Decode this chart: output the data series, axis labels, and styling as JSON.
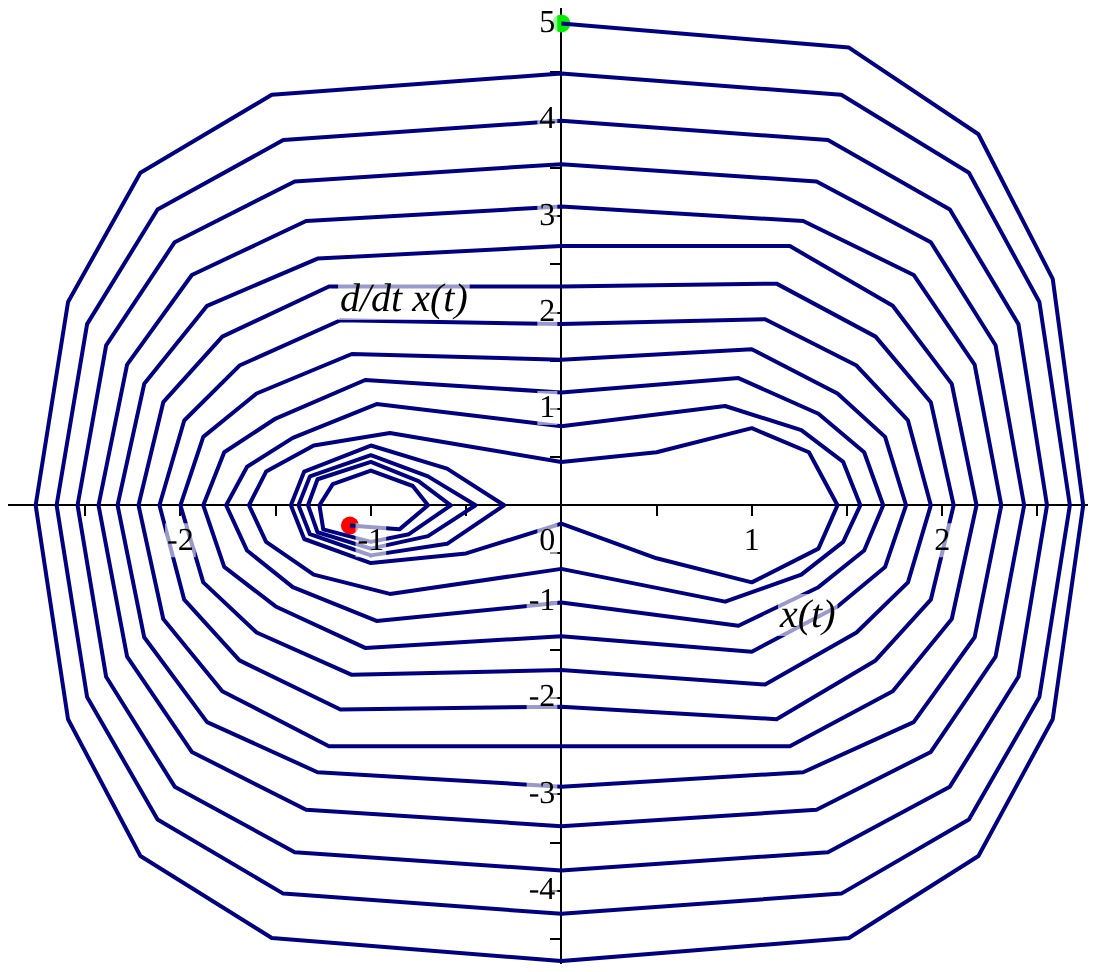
{
  "chart_data": {
    "type": "line",
    "xlabel": "x(t)",
    "ylabel": "d/dt x(t)",
    "grid": false,
    "legend": false,
    "xlim": [
      -2.9,
      2.76
    ],
    "ylim": [
      -4.75,
      5.15
    ],
    "xticks": [
      {
        "value": -2.5,
        "label": null
      },
      -2,
      {
        "value": -1.5,
        "label": null
      },
      -1,
      {
        "value": -0.5,
        "label": null
      },
      0,
      {
        "value": 0.5,
        "label": null
      },
      1,
      {
        "value": 1.5,
        "label": null
      },
      2,
      {
        "value": 2.5,
        "label": null
      }
    ],
    "yticks": [
      {
        "value": -4.5,
        "label": null
      },
      -4,
      {
        "value": -3.5,
        "label": null
      },
      -3,
      {
        "value": -2.5,
        "label": null
      },
      -2,
      {
        "value": -1.5,
        "label": null
      },
      -1,
      {
        "value": -0.5,
        "label": null
      },
      {
        "value": 0,
        "label": null
      },
      {
        "value": 0.5,
        "label": null
      },
      1,
      {
        "value": 1.5,
        "label": null
      },
      2,
      {
        "value": 2.5,
        "label": null
      },
      3,
      {
        "value": 3.5,
        "label": null
      },
      4,
      {
        "value": 4.5,
        "label": null
      },
      5
    ],
    "series": [
      {
        "type": "line",
        "color": "#000080",
        "x": [
          0,
          1.51,
          2.19,
          2.58,
          2.74,
          2.58,
          2.19,
          1.51,
          0,
          -1.52,
          -2.21,
          -2.59,
          -2.76,
          -2.59,
          -2.21,
          -1.52,
          0,
          1.47,
          2.14,
          2.51,
          2.67,
          2.51,
          2.14,
          1.47,
          0,
          -1.46,
          -2.12,
          -2.49,
          -2.65,
          -2.49,
          -2.12,
          -1.46,
          0,
          1.4,
          2.04,
          2.4,
          2.55,
          2.4,
          2.04,
          1.4,
          0,
          -1.4,
          -2.03,
          -2.39,
          -2.54,
          -2.39,
          -2.03,
          -1.4,
          0,
          1.34,
          1.94,
          2.28,
          2.43,
          2.28,
          1.94,
          1.34,
          0,
          -1.34,
          -1.94,
          -2.28,
          -2.43,
          -2.28,
          -1.94,
          -1.34,
          0,
          1.27,
          1.85,
          2.17,
          2.31,
          2.17,
          1.85,
          1.27,
          0,
          -1.28,
          -1.86,
          -2.19,
          -2.33,
          -2.19,
          -1.86,
          -1.28,
          0,
          1.2,
          1.74,
          2.05,
          2.18,
          2.05,
          1.74,
          1.2,
          0,
          -1.22,
          -1.78,
          -2.09,
          -2.22,
          -2.09,
          -1.78,
          -1.22,
          0,
          1.13,
          1.65,
          1.94,
          2.06,
          1.94,
          1.65,
          1.13,
          0,
          -1.16,
          -1.69,
          -1.98,
          -2.11,
          -1.98,
          -1.69,
          -1.16,
          0,
          1.07,
          1.55,
          1.82,
          1.94,
          1.82,
          1.55,
          1.07,
          0,
          -1.1,
          -1.6,
          -1.88,
          -2.0,
          -1.88,
          -1.6,
          -1.1,
          0,
          1.0,
          1.45,
          1.7,
          1.81,
          1.7,
          1.45,
          1.0,
          0,
          -1.03,
          -1.5,
          -1.77,
          -1.88,
          -1.77,
          -1.5,
          -1.03,
          0,
          0.93,
          1.35,
          1.59,
          1.69,
          1.59,
          1.35,
          0.93,
          0,
          -0.97,
          -1.41,
          -1.65,
          -1.76,
          -1.65,
          -1.41,
          -0.97,
          0,
          0.86,
          1.26,
          1.48,
          1.57,
          1.48,
          1.26,
          0.86,
          0,
          -0.9,
          -1.3,
          -1.55,
          -1.64,
          -1.55,
          -1.3,
          -0.9,
          -0.45,
          0,
          0.5,
          1.0,
          1.3,
          1.45,
          1.35,
          1.0,
          0.5,
          0,
          -0.5,
          -1.0,
          -1.35,
          -1.42,
          -1.35,
          -1.0,
          -0.6,
          -0.3,
          -0.6,
          -1.0,
          -1.32,
          -1.38,
          -1.32,
          -1.0,
          -0.7,
          -0.45,
          -0.7,
          -1.0,
          -1.28,
          -1.33,
          -1.28,
          -1.0,
          -0.75,
          -0.58,
          -0.8,
          -1.0,
          -1.25,
          -1.27,
          -1.2,
          -1.0,
          -0.78,
          -0.7,
          -0.85,
          -1.11
        ],
        "values": [
          5,
          4.75,
          3.85,
          2.35,
          0,
          -2.22,
          -3.64,
          -4.49,
          -4.73,
          -4.49,
          -3.64,
          -2.22,
          0,
          2.11,
          3.45,
          4.26,
          4.48,
          4.26,
          3.45,
          2.11,
          0,
          -1.99,
          -3.26,
          -4.03,
          -4.24,
          -4.03,
          -3.26,
          -1.99,
          0,
          1.88,
          3.07,
          3.79,
          3.99,
          3.79,
          3.07,
          1.88,
          0,
          -1.78,
          -2.92,
          -3.6,
          -3.79,
          -3.6,
          -2.92,
          -1.78,
          0,
          1.66,
          2.73,
          3.36,
          3.54,
          3.36,
          2.73,
          1.66,
          0,
          -1.57,
          -2.56,
          -3.16,
          -3.33,
          -3.16,
          -2.56,
          -1.57,
          0,
          1.46,
          2.39,
          2.95,
          3.1,
          2.95,
          2.39,
          1.46,
          0,
          -1.37,
          -2.25,
          -2.77,
          -2.92,
          -2.77,
          -2.25,
          -1.37,
          0,
          1.26,
          2.07,
          2.56,
          2.69,
          2.69,
          2.07,
          1.26,
          0,
          -1.18,
          -1.93,
          -2.5,
          -2.5,
          -2.5,
          -1.93,
          -1.18,
          0,
          1.07,
          1.75,
          2.27,
          2.27,
          2.3,
          1.75,
          1.07,
          0,
          -0.98,
          -1.61,
          -2.22,
          -2.09,
          -2.12,
          -1.61,
          -0.98,
          0,
          0.88,
          1.45,
          1.92,
          1.88,
          1.93,
          1.45,
          0.88,
          0,
          -0.8,
          -1.32,
          -1.86,
          -1.71,
          -1.76,
          -1.32,
          -0.8,
          0,
          0.71,
          1.16,
          1.57,
          1.51,
          1.62,
          1.16,
          0.71,
          0,
          -0.64,
          -1.05,
          -1.52,
          -1.36,
          -1.48,
          -1.05,
          -0.64,
          0,
          0.55,
          0.9,
          1.3,
          1.17,
          1.32,
          0.95,
          0.55,
          0,
          -0.47,
          -0.85,
          -1.25,
          -1.01,
          -1.2,
          -0.85,
          -0.47,
          0,
          0.4,
          0.7,
          1.05,
          0.82,
          1.03,
          0.78,
          0.45,
          0,
          -0.38,
          -0.72,
          -1.0,
          -0.66,
          -0.92,
          -0.72,
          -0.38,
          0,
          0.35,
          0.62,
          0.75,
          0.6,
          0.45,
          0.55,
          0.8,
          0.55,
          0,
          -0.45,
          -0.8,
          -0.55,
          -0.19,
          -0.5,
          -0.6,
          -0.35,
          0,
          0.35,
          0.62,
          0.38,
          0,
          -0.4,
          -0.52,
          -0.3,
          0,
          0.3,
          0.52,
          0.3,
          0,
          -0.32,
          -0.45,
          -0.28,
          0,
          0.27,
          0.45,
          0.25,
          0,
          -0.3,
          -0.38,
          -0.25,
          0,
          0.22,
          0.36,
          0.2,
          0,
          -0.25,
          -0.21
        ]
      },
      {
        "type": "scatter",
        "color": "#00ee00",
        "x": [
          0
        ],
        "values": [
          5
        ]
      },
      {
        "type": "scatter",
        "color": "#ff0000",
        "x": [
          -1.11
        ],
        "values": [
          -0.21
        ]
      }
    ]
  }
}
